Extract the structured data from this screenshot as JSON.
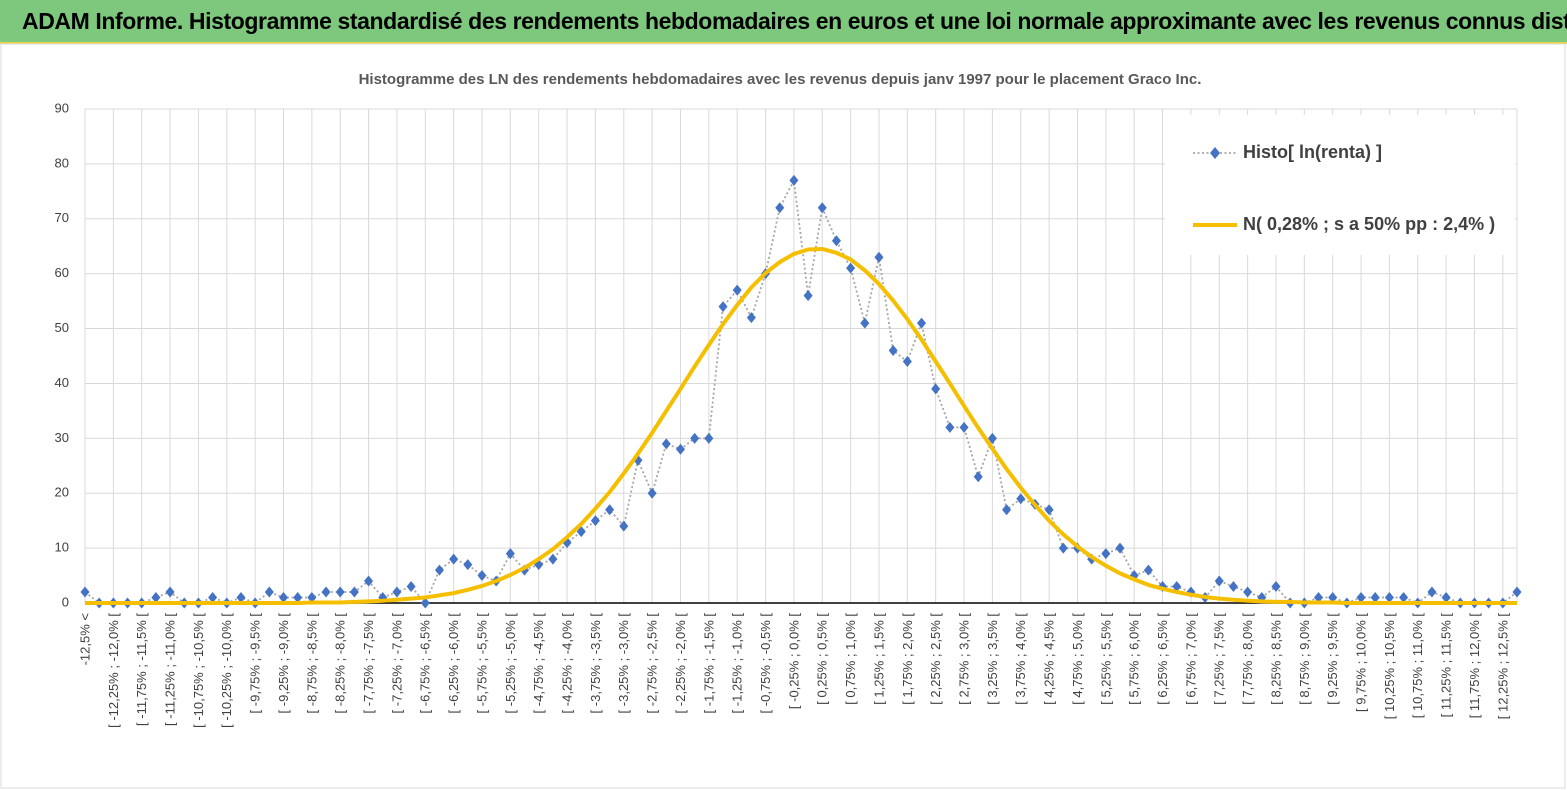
{
  "header": {
    "title": "ADAM Informe. Histogramme standardisé des rendements hebdomadaires en euros et une loi normale approximante avec les revenus connus distribués"
  },
  "chart_data": {
    "type": "line",
    "title": "Histogramme  des LN des rendements hebdomadaires avec les revenus depuis janv 1997 pour le placement Graco Inc.",
    "categories": [
      "-12,5% <",
      null,
      "[ -12,25% ; -12,0% [",
      null,
      "[ -11,75% ; -11,5% [",
      null,
      "[ -11,25% ; -11,0% [",
      null,
      "[ -10,75% ; -10,5% [",
      null,
      "[ -10,25% ; -10,0% [",
      null,
      "[ -9,75% ; -9,5% [",
      null,
      "[ -9,25% ; -9,0% [",
      null,
      "[ -8,75% ; -8,5% [",
      null,
      "[ -8,25% ; -8,0% [",
      null,
      "[ -7,75% ; -7,5% [",
      null,
      "[ -7,25% ; -7,0% [",
      null,
      "[ -6,75% ; -6,5% [",
      null,
      "[ -6,25% ; -6,0% [",
      null,
      "[ -5,75% ; -5,5% [",
      null,
      "[ -5,25% ; -5,0% [",
      null,
      "[ -4,75% ; -4,5% [",
      null,
      "[ -4,25% ; -4,0% [",
      null,
      "[ -3,75% ; -3,5% [",
      null,
      "[ -3,25% ; -3,0% [",
      null,
      "[ -2,75% ; -2,5% [",
      null,
      "[ -2,25% ; -2,0% [",
      null,
      "[ -1,75% ; -1,5% [",
      null,
      "[ -1,25% ; -1,0% [",
      null,
      "[ -0,75% ; -0,5% [",
      null,
      "[ -0,25% ; 0,0% [",
      null,
      "[ 0,25% ; 0,5% [",
      null,
      "[ 0,75% ; 1,0% [",
      null,
      "[ 1,25% ; 1,5% [",
      null,
      "[ 1,75% ; 2,0% [",
      null,
      "[ 2,25% ; 2,5% [",
      null,
      "[ 2,75% ; 3,0% [",
      null,
      "[ 3,25% ; 3,5% [",
      null,
      "[ 3,75% ; 4,0% [",
      null,
      "[ 4,25% ; 4,5% [",
      null,
      "[ 4,75% ; 5,0% [",
      null,
      "[ 5,25% ; 5,5% [",
      null,
      "[ 5,75% ; 6,0% [",
      null,
      "[ 6,25% ; 6,5% [",
      null,
      "[ 6,75% ; 7,0% [",
      null,
      "[ 7,25% ; 7,5% [",
      null,
      "[ 7,75% ; 8,0% [",
      null,
      "[ 8,25% ; 8,5% [",
      null,
      "[ 8,75% ; 9,0% [",
      null,
      "[ 9,25% ; 9,5% [",
      null,
      "[ 9,75% ; 10,0% [",
      null,
      "[ 10,25% ; 10,5% [",
      null,
      "[ 10,75% ; 11,0% [",
      null,
      "[ 11,25% ; 11,5% [",
      null,
      "[ 11,75% ; 12,0% [",
      null,
      "[ 12,25% ; 12,5% [",
      null
    ],
    "series": [
      {
        "name": "Histo[ ln(renta) ]",
        "color": "#4472c4",
        "marker": "diamond",
        "line_color": "#a6a6a6",
        "line_style": "dotted",
        "values": [
          2,
          0,
          0,
          0,
          0,
          1,
          2,
          0,
          0,
          1,
          0,
          1,
          0,
          2,
          1,
          1,
          1,
          2,
          2,
          2,
          4,
          1,
          2,
          3,
          0,
          6,
          8,
          7,
          5,
          4,
          9,
          6,
          7,
          8,
          11,
          13,
          15,
          17,
          14,
          26,
          20,
          29,
          28,
          30,
          30,
          54,
          57,
          52,
          60,
          72,
          77,
          56,
          72,
          66,
          61,
          51,
          63,
          46,
          44,
          51,
          39,
          32,
          32,
          23,
          30,
          17,
          19,
          18,
          17,
          10,
          10,
          8,
          9,
          10,
          5,
          6,
          3,
          3,
          2,
          1,
          4,
          3,
          2,
          1,
          3,
          0,
          0,
          1,
          1,
          0,
          1,
          1,
          1,
          1,
          0,
          2,
          1,
          0,
          0,
          0,
          0,
          2
        ]
      },
      {
        "name": "N( 0,28% ; s a 50% pp : 2,4% )",
        "color": "#f5bf00",
        "line_style": "solid",
        "values": [
          0,
          0,
          0,
          0,
          0,
          0,
          0,
          0,
          0,
          0,
          0,
          0,
          0,
          0,
          0,
          0,
          0.1,
          0.1,
          0.1,
          0.2,
          0.3,
          0.4,
          0.6,
          0.8,
          1.0,
          1.4,
          1.8,
          2.4,
          3.1,
          4.0,
          5.1,
          6.4,
          8.0,
          9.8,
          12.0,
          14.4,
          17.2,
          20.2,
          23.6,
          27.2,
          31.0,
          35.0,
          39.0,
          43.1,
          47.0,
          50.8,
          54.3,
          57.5,
          60.1,
          62.1,
          63.6,
          64.4,
          64.5,
          63.8,
          62.6,
          60.6,
          58.1,
          55.1,
          51.7,
          48.0,
          44.0,
          40.0,
          35.9,
          31.9,
          28.1,
          24.4,
          21.0,
          17.9,
          15.0,
          12.5,
          10.3,
          8.4,
          6.8,
          5.4,
          4.3,
          3.3,
          2.6,
          2.0,
          1.5,
          1.1,
          0.8,
          0.6,
          0.4,
          0.3,
          0.2,
          0.2,
          0.1,
          0.1,
          0.1,
          0,
          0,
          0,
          0,
          0,
          0,
          0,
          0,
          0,
          0,
          0,
          0,
          0
        ]
      }
    ],
    "ylim": [
      0,
      90
    ],
    "yticks": [
      0,
      10,
      20,
      30,
      40,
      50,
      60,
      70,
      80,
      90
    ],
    "grid": true,
    "legend": "top-right"
  }
}
